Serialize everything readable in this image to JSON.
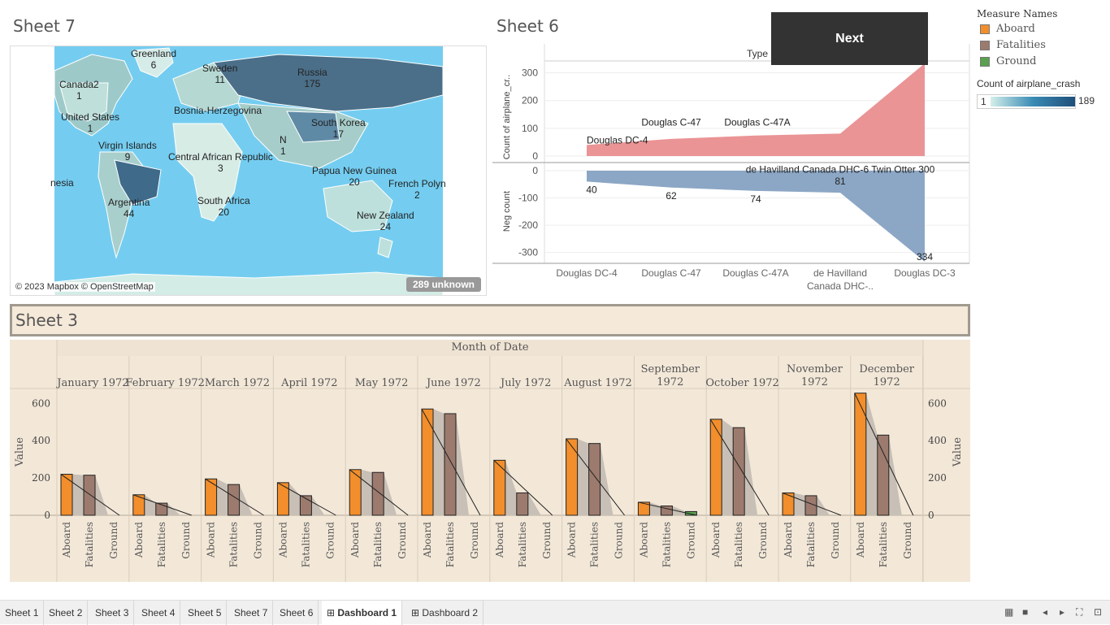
{
  "sheet7": {
    "title": "Sheet 7",
    "attribution": "© 2023 Mapbox © OpenStreetMap",
    "unknown": "289 unknown",
    "labels": [
      {
        "name": "Greenland",
        "value": "6"
      },
      {
        "name": "Canada2",
        "value": "1"
      },
      {
        "name": "Sweden",
        "value": "11"
      },
      {
        "name": "Russia",
        "value": "175"
      },
      {
        "name": "United States",
        "value": "1"
      },
      {
        "name": "Bosnia-Herzegovina",
        "value": ""
      },
      {
        "name": "South Korea",
        "value": "17"
      },
      {
        "name": "Virgin Islands",
        "value": "9"
      },
      {
        "name": "Central African Republic",
        "value": "3"
      },
      {
        "name": "N",
        "value": "1"
      },
      {
        "name": "nesia",
        "value": ""
      },
      {
        "name": "Papua New Guinea",
        "value": "20"
      },
      {
        "name": "French Polyn",
        "value": "2"
      },
      {
        "name": "Argentina",
        "value": "44"
      },
      {
        "name": "South Africa",
        "value": "20"
      },
      {
        "name": "New Zealand",
        "value": "24"
      }
    ]
  },
  "sheet6": {
    "title": "Sheet 6",
    "header": "Type",
    "next_label": "Next",
    "chart_data": {
      "type": "area",
      "categories": [
        "Douglas DC-4",
        "Douglas C-47",
        "Douglas C-47A",
        "de Havilland Canada DHC-6 Twin Otter 300",
        "Douglas DC-3"
      ],
      "category_ticks": [
        "Douglas DC-4",
        "Douglas C-47",
        "Douglas C-47A",
        "de Havilland",
        "Canada DHC-..",
        "Douglas DC-3"
      ],
      "series": [
        {
          "name": "Count of airplane_cr..",
          "values": [
            40,
            62,
            74,
            81,
            334
          ]
        },
        {
          "name": "Neg count",
          "values": [
            -40,
            -62,
            -74,
            -81,
            -334
          ]
        }
      ],
      "upper_ylim": [
        0,
        334
      ],
      "lower_ylim": [
        -334,
        0
      ],
      "upper_ticks": [
        "300",
        "200",
        "100",
        "0"
      ],
      "lower_ticks": [
        "0",
        "-100",
        "-200",
        "-300"
      ],
      "upper_ylabel": "Count of airplane_cr..",
      "lower_ylabel": "Neg count",
      "upper_labels": [
        "Douglas DC-4",
        "Douglas C-47",
        "Douglas C-47A",
        "de Havilland Canada DHC-6 Twin Otter 300",
        "Douglas DC-3"
      ],
      "lower_labels": [
        "40",
        "62",
        "74",
        "81",
        "334"
      ],
      "colors": {
        "upper": "#e8888a",
        "lower": "#7f9dbf"
      }
    }
  },
  "legend": {
    "title": "Measure Names",
    "items": [
      {
        "label": "Aboard",
        "color": "#f28e2b"
      },
      {
        "label": "Fatalities",
        "color": "#9c7b6e"
      },
      {
        "label": "Ground",
        "color": "#59a14f"
      }
    ],
    "color_title": "Count of airplane_crash",
    "color_min": "1",
    "color_max": "189"
  },
  "sheet3": {
    "title": "Sheet 3",
    "header": "Month of Date",
    "ylabel": "Value",
    "yticks": [
      "600",
      "400",
      "200",
      "0"
    ],
    "chart_data": {
      "type": "bar",
      "categories": [
        "January 1972",
        "February 1972",
        "March 1972",
        "April 1972",
        "May 1972",
        "June 1972",
        "July 1972",
        "August 1972",
        "September 1972",
        "October 1972",
        "November 1972",
        "December 1972"
      ],
      "month_lines": [
        [
          "January 1972"
        ],
        [
          "February 1972"
        ],
        [
          "March 1972"
        ],
        [
          "April 1972"
        ],
        [
          "May 1972"
        ],
        [
          "June 1972"
        ],
        [
          "July 1972"
        ],
        [
          "August 1972"
        ],
        [
          "September",
          "1972"
        ],
        [
          "October 1972"
        ],
        [
          "November",
          "1972"
        ],
        [
          "December",
          "1972"
        ]
      ],
      "measures": [
        "Aboard",
        "Fatalities",
        "Ground"
      ],
      "series": [
        {
          "name": "Aboard",
          "values": [
            220,
            110,
            195,
            175,
            245,
            570,
            295,
            410,
            70,
            515,
            120,
            655
          ]
        },
        {
          "name": "Fatalities",
          "values": [
            215,
            65,
            165,
            105,
            230,
            545,
            120,
            385,
            50,
            470,
            105,
            430
          ]
        },
        {
          "name": "Ground",
          "values": [
            0,
            0,
            0,
            0,
            0,
            0,
            0,
            0,
            20,
            0,
            0,
            0
          ]
        }
      ],
      "ylim": [
        0,
        680
      ]
    }
  },
  "tabs": [
    {
      "label": "Sheet 1"
    },
    {
      "label": "Sheet 2"
    },
    {
      "label": "Sheet 3"
    },
    {
      "label": "Sheet 4"
    },
    {
      "label": "Sheet 5"
    },
    {
      "label": "Sheet 7"
    },
    {
      "label": "Sheet 6"
    },
    {
      "label": "Dashboard 1"
    },
    {
      "label": "Dashboard 2"
    }
  ]
}
